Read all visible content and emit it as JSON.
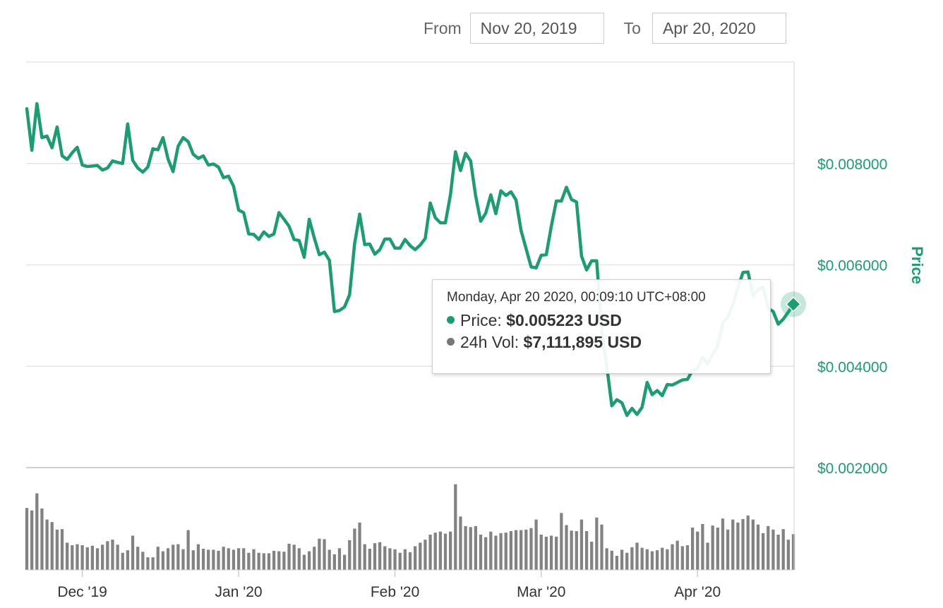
{
  "date_range": {
    "from_label": "From",
    "from_value": "Nov 20, 2019",
    "to_label": "To",
    "to_value": "Apr 20, 2020"
  },
  "tooltip": {
    "date": "Monday, Apr 20 2020, 00:09:10 UTC+08:00",
    "price_label": "Price:",
    "price_value": "$0.005223 USD",
    "volume_label": "24h Vol:",
    "volume_value": "$7,111,895 USD"
  },
  "colors": {
    "price_line": "#1a9e71",
    "volume_bar": "#828282",
    "grid": "#e6e6e6",
    "axis_text": "#333333",
    "price_axis_text": "#1a9e71"
  },
  "chart_data": {
    "type": "line",
    "x_start": "2019-11-20",
    "x_end": "2020-04-20",
    "x_tick_labels": [
      "Dec '19",
      "Jan '20",
      "Feb '20",
      "Mar '20",
      "Apr '20"
    ],
    "x_tick_dates": [
      "2019-12-01",
      "2020-01-01",
      "2020-02-01",
      "2020-03-01",
      "2020-04-01"
    ],
    "ylabel": "Price",
    "y_tick_labels": [
      "$0.002000",
      "$0.004000",
      "$0.006000",
      "$0.008000"
    ],
    "y_tick_values": [
      0.002,
      0.004,
      0.006,
      0.008
    ],
    "ylim": [
      0.002,
      0.01
    ],
    "series": [
      {
        "name": "Price",
        "unit": "USD",
        "values": [
          0.00908,
          0.00826,
          0.00918,
          0.00851,
          0.00854,
          0.00831,
          0.00872,
          0.00815,
          0.00808,
          0.00821,
          0.00832,
          0.00797,
          0.00794,
          0.00795,
          0.00796,
          0.00787,
          0.00791,
          0.00805,
          0.00802,
          0.008,
          0.00878,
          0.00806,
          0.00791,
          0.00783,
          0.00793,
          0.00829,
          0.00827,
          0.00851,
          0.00809,
          0.00784,
          0.00834,
          0.00851,
          0.00843,
          0.00818,
          0.0081,
          0.00815,
          0.00797,
          0.00799,
          0.00793,
          0.00772,
          0.00775,
          0.00755,
          0.00708,
          0.00703,
          0.00661,
          0.0066,
          0.0065,
          0.00665,
          0.00656,
          0.00661,
          0.00703,
          0.0069,
          0.00676,
          0.0065,
          0.00648,
          0.00615,
          0.0069,
          0.00653,
          0.0062,
          0.00625,
          0.00609,
          0.00508,
          0.0051,
          0.00517,
          0.00541,
          0.00642,
          0.007,
          0.0064,
          0.00641,
          0.00621,
          0.0063,
          0.00651,
          0.00651,
          0.00633,
          0.00633,
          0.0065,
          0.00638,
          0.0063,
          0.00639,
          0.00652,
          0.00722,
          0.00693,
          0.00683,
          0.00683,
          0.00738,
          0.00823,
          0.00786,
          0.0082,
          0.00805,
          0.00736,
          0.00686,
          0.00702,
          0.00738,
          0.00701,
          0.00746,
          0.00737,
          0.00744,
          0.00728,
          0.00668,
          0.00632,
          0.00596,
          0.00594,
          0.00619,
          0.0062,
          0.00676,
          0.00726,
          0.00726,
          0.00753,
          0.00729,
          0.00724,
          0.00617,
          0.0059,
          0.00608,
          0.00608,
          0.0047,
          0.004,
          0.00322,
          0.00334,
          0.00328,
          0.00303,
          0.00317,
          0.00305,
          0.00319,
          0.00368,
          0.00344,
          0.00352,
          0.00342,
          0.00364,
          0.00363,
          0.00368,
          0.00373,
          0.00374,
          0.00392,
          0.00396,
          0.00418,
          0.00405,
          0.00424,
          0.0044,
          0.00486,
          0.00497,
          0.00522,
          0.00554,
          0.00585,
          0.00586,
          0.0054,
          0.00551,
          0.00556,
          0.00514,
          0.00508,
          0.00483,
          0.00493,
          0.00507,
          0.005223
        ]
      },
      {
        "name": "24h Vol",
        "unit": "USD",
        "values": [
          12.3,
          11.8,
          15.2,
          12.2,
          10.0,
          9.5,
          8.0,
          8.1,
          5.4,
          4.9,
          5.1,
          4.9,
          4.5,
          4.8,
          4.3,
          5.0,
          5.7,
          6.0,
          5.0,
          3.4,
          3.9,
          6.8,
          4.6,
          3.6,
          2.5,
          2.5,
          4.6,
          3.7,
          4.3,
          5.0,
          5.1,
          4.1,
          7.9,
          3.9,
          5.1,
          4.2,
          4.0,
          4.0,
          3.8,
          4.6,
          4.3,
          4.0,
          4.3,
          4.3,
          3.4,
          4.1,
          3.4,
          3.3,
          3.3,
          3.8,
          3.7,
          3.6,
          5.2,
          5.0,
          4.3,
          3.0,
          3.7,
          4.6,
          6.2,
          6.1,
          4.0,
          3.1,
          4.3,
          3.0,
          5.9,
          8.2,
          9.4,
          5.1,
          4.2,
          5.3,
          5.5,
          4.7,
          4.3,
          4.1,
          3.4,
          4.1,
          3.5,
          4.7,
          5.4,
          6.0,
          7.0,
          7.4,
          7.6,
          7.2,
          7.6,
          17.0,
          10.6,
          8.7,
          8.5,
          8.7,
          7.0,
          6.5,
          7.6,
          6.8,
          7.3,
          7.4,
          7.7,
          7.9,
          7.9,
          8.0,
          8.3,
          10.0,
          7.0,
          6.6,
          6.8,
          6.6,
          11.3,
          8.9,
          7.8,
          7.7,
          10.0,
          7.7,
          5.6,
          10.4,
          9.0,
          4.3,
          3.8,
          2.8,
          4.0,
          3.4,
          4.5,
          5.4,
          4.4,
          4.1,
          3.7,
          3.9,
          4.4,
          4.1,
          5.1,
          5.8,
          4.7,
          4.9,
          8.4,
          7.6,
          9.1,
          5.4,
          8.8,
          8.4,
          10.2,
          8.0,
          10.0,
          9.4,
          10.1,
          10.8,
          10.0,
          9.0,
          7.3,
          8.7,
          8.0,
          7.0,
          8.1,
          6.0,
          7.1
        ]
      }
    ],
    "highlight": {
      "date": "2020-04-20",
      "price": 0.005223
    },
    "grid": true,
    "legend": "none"
  }
}
